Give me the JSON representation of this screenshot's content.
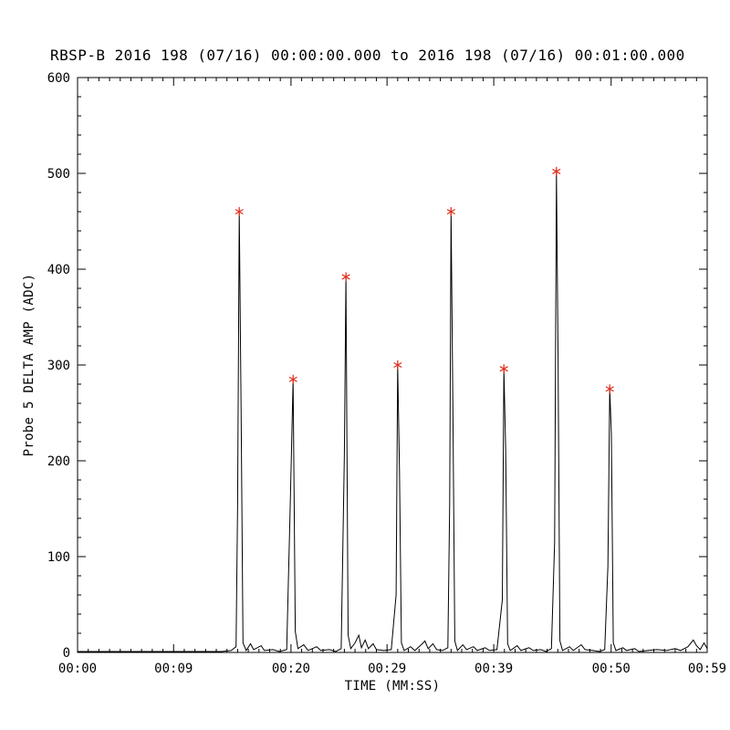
{
  "chart_data": {
    "type": "line",
    "title": "RBSP-B 2016 198 (07/16) 00:00:00.000 to 2016 198 (07/16) 00:01:00.000",
    "xlabel": "TIME (MM:SS)",
    "ylabel": "Probe 5 DELTA AMP (ADC)",
    "xlim": [
      0,
      59
    ],
    "ylim": [
      0,
      600
    ],
    "grid": false,
    "legend": "none",
    "axis_color": "#000000",
    "line_color": "#000000",
    "marker_color": "#dd3322",
    "y_ticks": [
      0,
      100,
      200,
      300,
      400,
      500,
      600
    ],
    "x_ticks": [
      {
        "t": 0,
        "label": "00:00"
      },
      {
        "t": 9,
        "label": "00:09"
      },
      {
        "t": 20,
        "label": "00:20"
      },
      {
        "t": 29,
        "label": "00:29"
      },
      {
        "t": 39,
        "label": "00:39"
      },
      {
        "t": 50,
        "label": "00:50"
      },
      {
        "t": 59,
        "label": "00:59"
      }
    ],
    "series": [
      {
        "name": "Probe 5 delta amplitude",
        "points": [
          [
            0,
            1
          ],
          [
            2,
            1
          ],
          [
            4,
            1
          ],
          [
            6,
            1
          ],
          [
            8,
            1
          ],
          [
            10,
            1
          ],
          [
            12,
            1
          ],
          [
            13.5,
            1
          ],
          [
            14.4,
            2
          ],
          [
            14.85,
            6
          ],
          [
            15.0,
            155
          ],
          [
            15.15,
            460
          ],
          [
            15.32,
            255
          ],
          [
            15.5,
            10
          ],
          [
            15.8,
            2
          ],
          [
            16.2,
            9
          ],
          [
            16.5,
            3
          ],
          [
            17.2,
            7
          ],
          [
            17.5,
            2
          ],
          [
            18.3,
            3
          ],
          [
            18.9,
            1
          ],
          [
            19.6,
            3
          ],
          [
            19.95,
            163
          ],
          [
            20.2,
            285
          ],
          [
            20.4,
            22
          ],
          [
            20.65,
            4
          ],
          [
            21.2,
            8
          ],
          [
            21.6,
            2
          ],
          [
            22.4,
            6
          ],
          [
            22.8,
            2
          ],
          [
            23.6,
            3
          ],
          [
            24.2,
            1
          ],
          [
            24.7,
            4
          ],
          [
            25.0,
            207
          ],
          [
            25.15,
            392
          ],
          [
            25.35,
            18
          ],
          [
            25.6,
            4
          ],
          [
            26.0,
            10
          ],
          [
            26.35,
            18
          ],
          [
            26.6,
            5
          ],
          [
            26.95,
            13
          ],
          [
            27.25,
            4
          ],
          [
            27.7,
            9
          ],
          [
            28.0,
            3
          ],
          [
            28.7,
            2
          ],
          [
            29.4,
            3
          ],
          [
            29.85,
            60
          ],
          [
            30.0,
            300
          ],
          [
            30.17,
            190
          ],
          [
            30.35,
            10
          ],
          [
            30.6,
            2
          ],
          [
            31.2,
            6
          ],
          [
            31.6,
            2
          ],
          [
            32.2,
            8
          ],
          [
            32.55,
            12
          ],
          [
            32.85,
            4
          ],
          [
            33.3,
            9
          ],
          [
            33.65,
            3
          ],
          [
            34.2,
            2
          ],
          [
            34.7,
            5
          ],
          [
            34.87,
            155
          ],
          [
            35.0,
            460
          ],
          [
            35.17,
            258
          ],
          [
            35.35,
            12
          ],
          [
            35.6,
            2
          ],
          [
            36.1,
            8
          ],
          [
            36.45,
            3
          ],
          [
            37.1,
            6
          ],
          [
            37.45,
            2
          ],
          [
            38.2,
            5
          ],
          [
            38.6,
            2
          ],
          [
            39.3,
            3
          ],
          [
            39.8,
            55
          ],
          [
            39.95,
            296
          ],
          [
            40.12,
            210
          ],
          [
            40.3,
            9
          ],
          [
            40.55,
            2
          ],
          [
            41.2,
            7
          ],
          [
            41.55,
            2
          ],
          [
            42.3,
            5
          ],
          [
            42.7,
            2
          ],
          [
            43.4,
            3
          ],
          [
            43.9,
            1
          ],
          [
            44.4,
            4
          ],
          [
            44.7,
            115
          ],
          [
            44.87,
            502
          ],
          [
            45.03,
            305
          ],
          [
            45.2,
            12
          ],
          [
            45.45,
            2
          ],
          [
            46.1,
            6
          ],
          [
            46.45,
            2
          ],
          [
            47.2,
            8
          ],
          [
            47.55,
            3
          ],
          [
            48.3,
            2
          ],
          [
            48.9,
            1
          ],
          [
            49.4,
            3
          ],
          [
            49.7,
            90
          ],
          [
            49.87,
            275
          ],
          [
            50.02,
            228
          ],
          [
            50.2,
            10
          ],
          [
            50.45,
            2
          ],
          [
            51.1,
            5
          ],
          [
            51.45,
            2
          ],
          [
            52.2,
            4
          ],
          [
            52.6,
            1
          ],
          [
            53.4,
            2
          ],
          [
            54.3,
            3
          ],
          [
            55.2,
            2
          ],
          [
            56.0,
            4
          ],
          [
            56.5,
            2
          ],
          [
            57.2,
            6
          ],
          [
            57.7,
            13
          ],
          [
            58.0,
            7
          ],
          [
            58.35,
            3
          ],
          [
            58.7,
            10
          ],
          [
            59,
            4
          ]
        ]
      }
    ],
    "peaks": [
      [
        15.15,
        460
      ],
      [
        20.2,
        285
      ],
      [
        25.15,
        392
      ],
      [
        30.0,
        300
      ],
      [
        35.0,
        460
      ],
      [
        39.95,
        296
      ],
      [
        44.87,
        502
      ],
      [
        49.87,
        275
      ]
    ]
  }
}
